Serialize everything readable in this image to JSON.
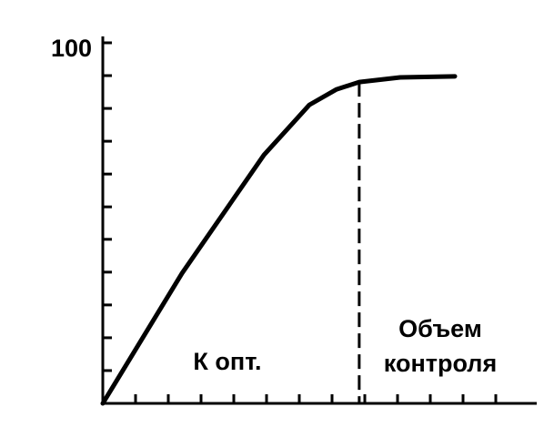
{
  "chart_data": {
    "type": "line",
    "x": [
      0,
      2.42,
      4.92,
      6.31,
      7.14,
      7.83,
      9.08,
      10.75
    ],
    "series": [
      {
        "color": "#000000",
        "values": [
          0,
          36.1,
          68.9,
          82.8,
          87.1,
          89.1,
          90.4,
          90.7
        ]
      }
    ],
    "xlim": [
      0,
      13.25
    ],
    "ylim": [
      0,
      100
    ],
    "yticks": [
      100
    ],
    "y_minor_ticks": [
      9.1,
      18.2,
      27.3,
      36.4,
      45.5,
      54.5,
      63.6,
      72.7,
      81.8,
      90.9
    ],
    "x_minor_ticks": [
      1,
      2,
      3,
      4,
      5,
      6,
      7,
      8,
      9,
      10,
      11,
      12
    ],
    "dashed_x": 7.83,
    "annotations": [
      "К опт.",
      "Объем",
      "контроля"
    ]
  }
}
